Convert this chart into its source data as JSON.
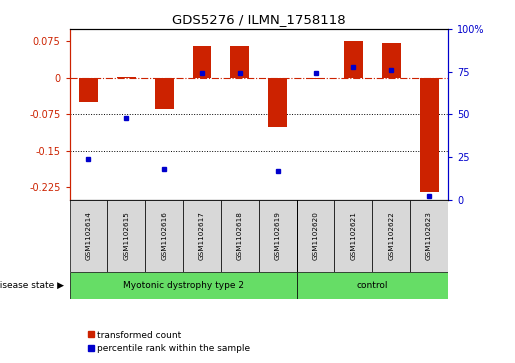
{
  "title": "GDS5276 / ILMN_1758118",
  "samples": [
    "GSM1102614",
    "GSM1102615",
    "GSM1102616",
    "GSM1102617",
    "GSM1102618",
    "GSM1102619",
    "GSM1102620",
    "GSM1102621",
    "GSM1102622",
    "GSM1102623"
  ],
  "red_values": [
    -0.05,
    0.002,
    -0.065,
    0.065,
    0.065,
    -0.1,
    -0.003,
    0.075,
    0.072,
    -0.235
  ],
  "blue_values_pct": [
    24,
    48,
    18,
    74,
    74,
    17,
    74,
    78,
    76,
    2
  ],
  "disease_groups": [
    {
      "label": "Myotonic dystrophy type 2",
      "start": 0,
      "end": 5,
      "color": "#90EE90"
    },
    {
      "label": "control",
      "start": 6,
      "end": 9,
      "color": "#90EE90"
    }
  ],
  "ylim_left": [
    -0.25,
    0.1
  ],
  "ylim_right": [
    0,
    100
  ],
  "yticks_left": [
    0.075,
    0,
    -0.075,
    -0.15,
    -0.225
  ],
  "yticks_right": [
    100,
    75,
    50,
    25,
    0
  ],
  "ytick_labels_left": [
    "0.075",
    "0",
    "-0.075",
    "-0.15",
    "-0.225"
  ],
  "ytick_labels_right": [
    "100%",
    "75",
    "50",
    "25",
    "0"
  ],
  "red_color": "#CC2200",
  "blue_color": "#0000CC",
  "bg_color": "#FFFFFF",
  "legend_red": "transformed count",
  "legend_blue": "percentile rank within the sample",
  "disease_label": "disease state",
  "dotted_lines": [
    -0.075,
    -0.15
  ],
  "bar_width": 0.5,
  "sample_box_color": "#D8D8D8",
  "green_color": "#66DD66"
}
